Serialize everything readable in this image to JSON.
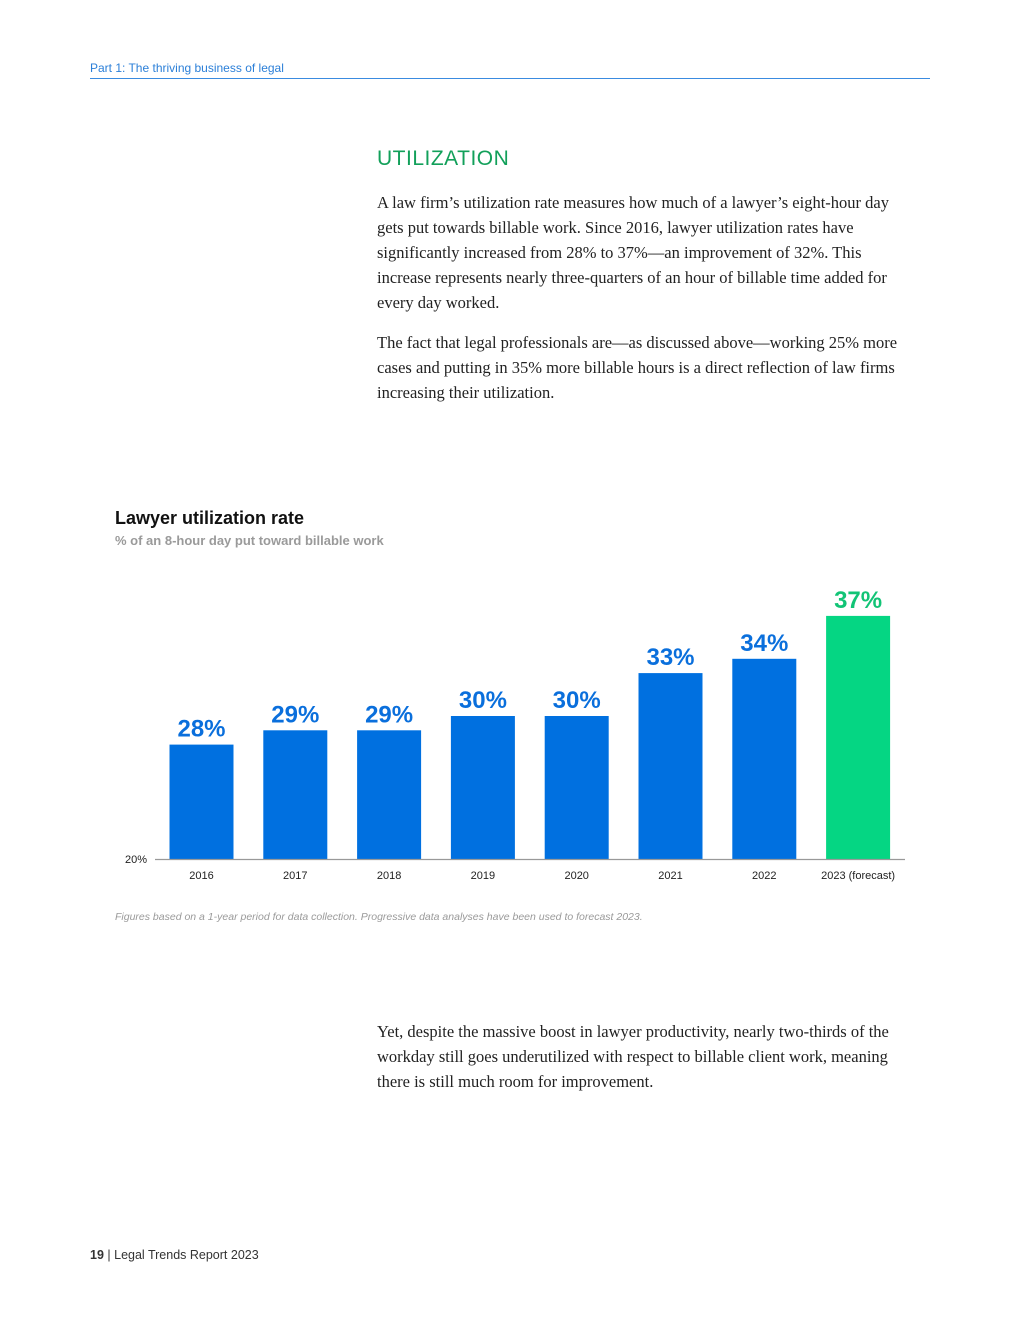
{
  "header": {
    "section": "Part 1: The thriving business of legal"
  },
  "utilization": {
    "title": "UTILIZATION",
    "para1": "A law firm’s utilization rate measures how much of a lawyer’s eight-hour day gets put towards billable work. Since 2016, lawyer utilization rates have significantly increased from 28% to 37%—an improvement of 32%. This increase represents nearly three-quarters of an hour of billable time added for every day worked.",
    "para2": "The fact that legal professionals are—as discussed above—working 25% more cases and putting in 35% more billable hours is a direct reflection of law firms increasing their utilization.",
    "para3": "Yet, despite the massive boost in lawyer productivity, nearly two-thirds of the workday still goes underutilized with respect to billable client work, meaning there is still much room for improvement."
  },
  "chart_data": {
    "type": "bar",
    "title": "Lawyer utilization rate",
    "subtitle": "% of an 8-hour day put toward billable work",
    "categories": [
      "2016",
      "2017",
      "2018",
      "2019",
      "2020",
      "2021",
      "2022",
      "2023 (forecast)"
    ],
    "values": [
      28,
      29,
      29,
      30,
      30,
      33,
      34,
      37
    ],
    "labels": [
      "28%",
      "29%",
      "29%",
      "30%",
      "30%",
      "33%",
      "34%",
      "37%"
    ],
    "y_min_label": "20%",
    "ylim": [
      20,
      38
    ],
    "grid": false,
    "colors": {
      "actual": "#0070e0",
      "forecast": "#05d683",
      "label_actual": "#0a6fdc",
      "label_forecast": "#12c476",
      "axis": "#999999"
    },
    "footnote": "Figures based on a 1-year period for data collection. Progressive data analyses have been used to forecast 2023."
  },
  "footer": {
    "page": "19",
    "sep": "|",
    "report": "Legal Trends Report 2023"
  }
}
